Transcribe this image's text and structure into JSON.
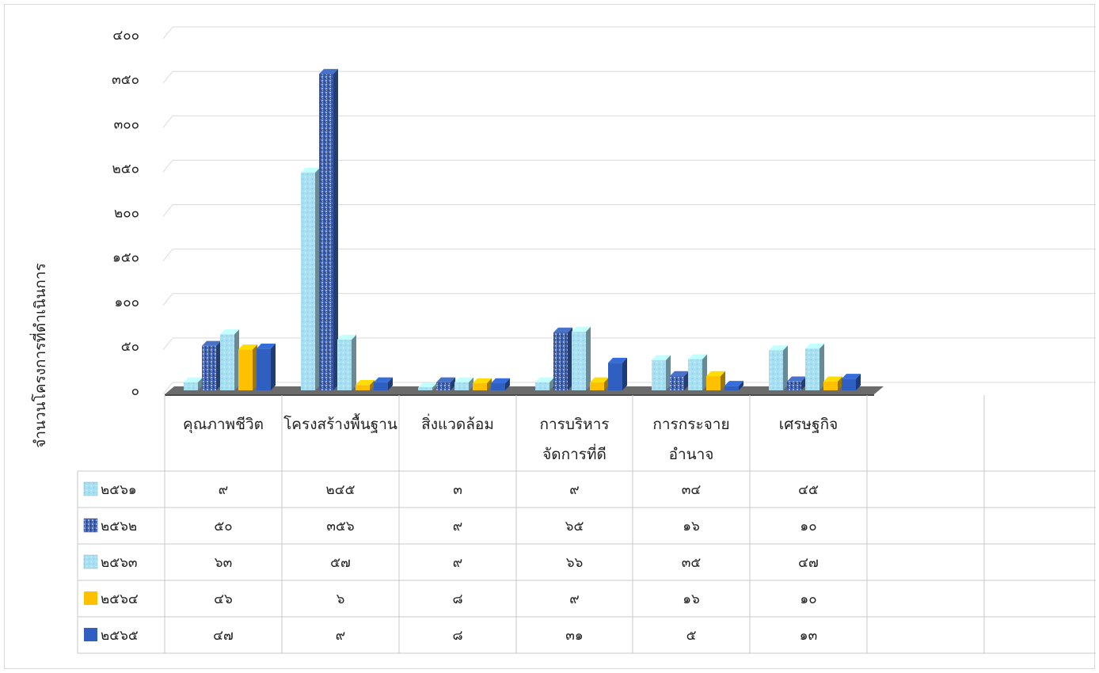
{
  "chart_data": {
    "type": "bar",
    "ylabel": "จำนวนโครงการที่ดำเนินการ",
    "ylim": [
      0,
      400
    ],
    "yticks": [
      0,
      50,
      100,
      150,
      200,
      250,
      300,
      350,
      400
    ],
    "ytick_labels": [
      "๐",
      "๕๐",
      "๑๐๐",
      "๑๕๐",
      "๒๐๐",
      "๒๕๐",
      "๓๐๐",
      "๓๕๐",
      "๔๐๐"
    ],
    "categories": [
      [
        "คุณภาพชีวิต"
      ],
      [
        "โครงสร้างพื้นฐาน"
      ],
      [
        "สิ่งแวดล้อม"
      ],
      [
        "การบริหาร",
        "จัดการที่ดี"
      ],
      [
        "การกระจาย",
        "อำนาจ"
      ],
      [
        "เศรษฐกิจ"
      ]
    ],
    "series": [
      {
        "name": "๒๕๖๑",
        "values": [
          9,
          245,
          3,
          9,
          34,
          45
        ],
        "labels": [
          "๙",
          "๒๔๕",
          "๓",
          "๙",
          "๓๔",
          "๔๕"
        ],
        "color": "#a9dff0",
        "pattern": "light"
      },
      {
        "name": "๒๕๖๒",
        "values": [
          50,
          356,
          9,
          65,
          16,
          10
        ],
        "labels": [
          "๕๐",
          "๓๕๖",
          "๙",
          "๖๕",
          "๑๖",
          "๑๐"
        ],
        "color": "#3f63b0",
        "pattern": "dark"
      },
      {
        "name": "๒๕๖๓",
        "values": [
          63,
          57,
          9,
          66,
          35,
          47
        ],
        "labels": [
          "๖๓",
          "๕๗",
          "๙",
          "๖๖",
          "๓๕",
          "๔๗"
        ],
        "color": "#a9dff0",
        "pattern": "light"
      },
      {
        "name": "๒๕๖๔",
        "values": [
          46,
          6,
          8,
          9,
          16,
          10
        ],
        "labels": [
          "๔๖",
          "๖",
          "๘",
          "๙",
          "๑๖",
          "๑๐"
        ],
        "color": "#ffc000",
        "pattern": "solid"
      },
      {
        "name": "๒๕๖๕",
        "values": [
          47,
          9,
          8,
          31,
          5,
          13
        ],
        "labels": [
          "๔๗",
          "๙",
          "๘",
          "๓๑",
          "๕",
          "๑๓"
        ],
        "color": "#2f5fc0",
        "pattern": "solid"
      }
    ],
    "grid": true,
    "data_table": true
  }
}
